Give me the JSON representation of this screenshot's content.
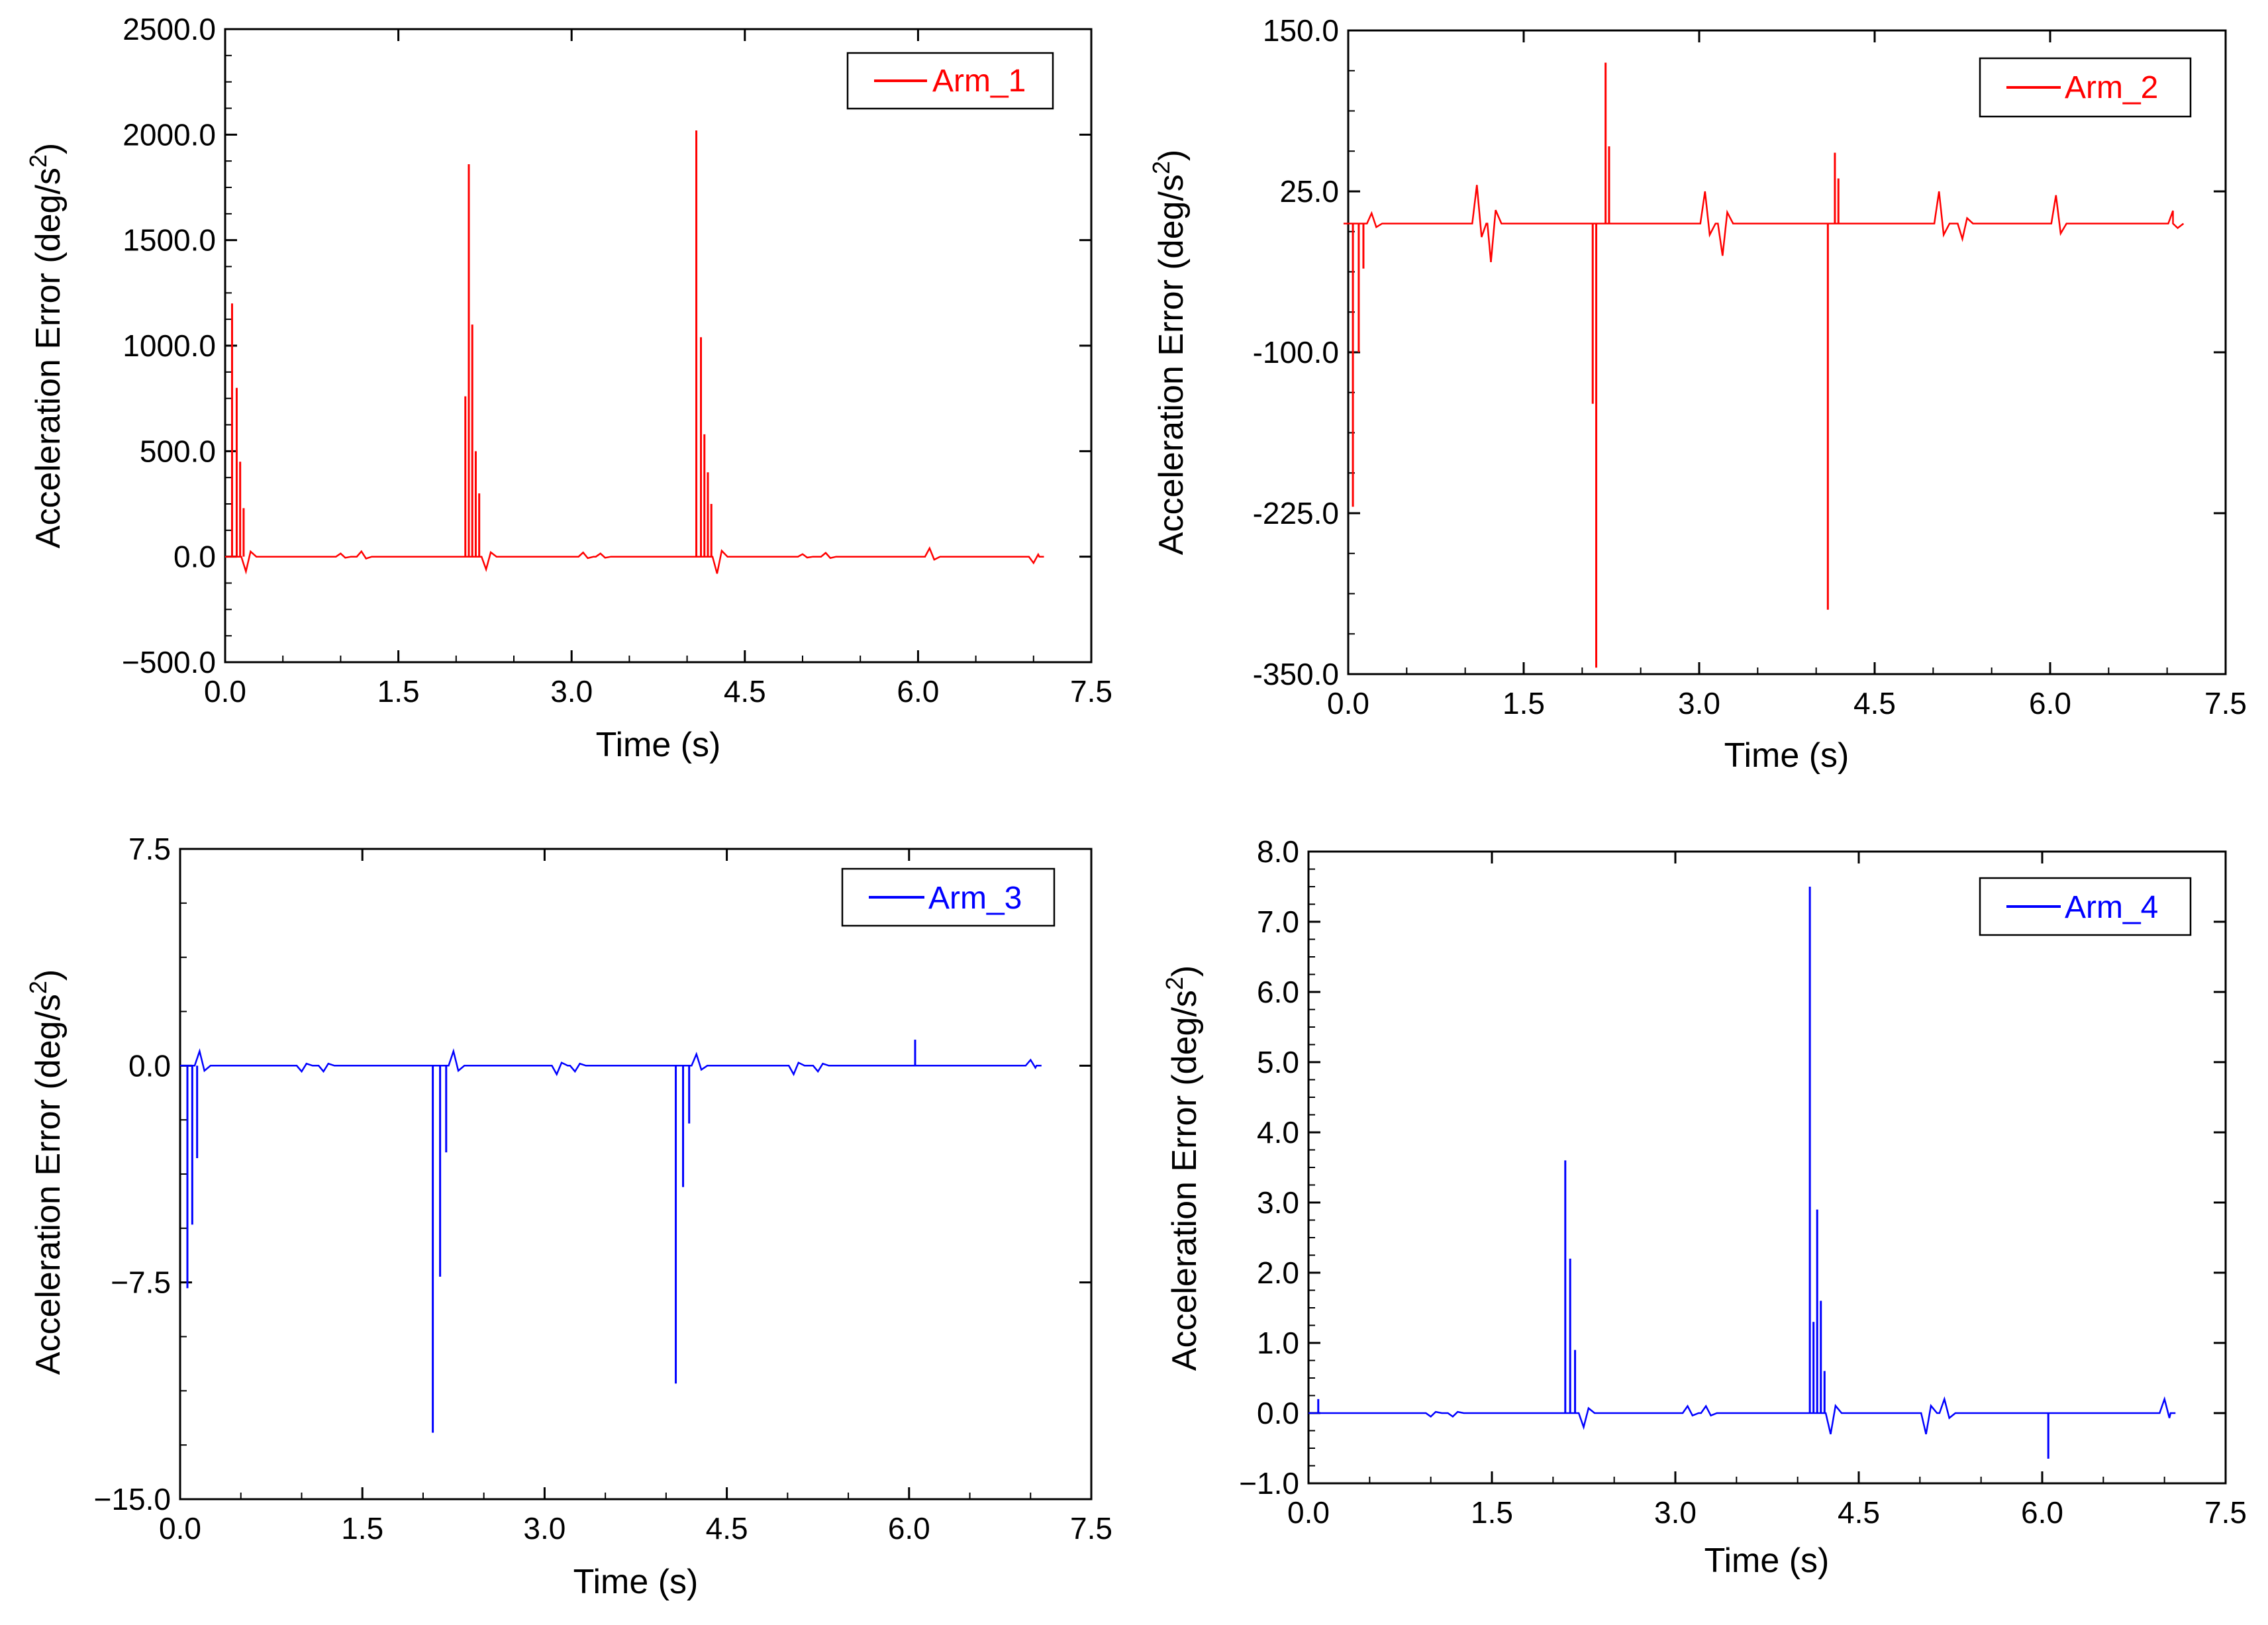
{
  "figure": {
    "x_unit_title": "Time (s)",
    "y_unit_title": "Acceleration Error (deg/s",
    "y_unit_sup": "2",
    "y_unit_close": ")"
  },
  "chart_data": [
    {
      "type": "line",
      "series": [
        {
          "name": "Arm_1",
          "color": "#ff0000"
        }
      ],
      "xlabel": "Time (s)",
      "ylabel": "Acceleration Error (deg/s2)",
      "xlim": [
        0,
        7.5
      ],
      "ylim": [
        -500,
        2500
      ],
      "xticks": [
        "0.0",
        "1.5",
        "3.0",
        "4.5",
        "6.0",
        "7.5"
      ],
      "yticks": [
        "−500.0",
        "0.0",
        "500.0",
        "1000.0",
        "1500.0",
        "2000.0",
        "2500.0"
      ],
      "ytick_values": [
        -500,
        0,
        500,
        1000,
        1500,
        2000,
        2500
      ],
      "baseline": 0,
      "spikes": [
        [
          0.06,
          1200
        ],
        [
          0.1,
          800
        ],
        [
          0.13,
          450
        ],
        [
          0.16,
          230
        ],
        [
          2.08,
          760
        ],
        [
          2.11,
          1860
        ],
        [
          2.14,
          1100
        ],
        [
          2.17,
          500
        ],
        [
          2.2,
          300
        ],
        [
          4.08,
          2020
        ],
        [
          4.12,
          1040
        ],
        [
          4.15,
          580
        ],
        [
          4.18,
          400
        ],
        [
          4.21,
          250
        ]
      ],
      "dips": [
        [
          0.18,
          -70
        ],
        [
          2.26,
          -60
        ],
        [
          4.26,
          -80
        ]
      ],
      "wiggles": [
        [
          1.0,
          15
        ],
        [
          1.18,
          25
        ],
        [
          3.1,
          20
        ],
        [
          3.25,
          15
        ],
        [
          5.0,
          12
        ],
        [
          5.2,
          18
        ],
        [
          6.1,
          40
        ],
        [
          7.0,
          -30
        ]
      ]
    },
    {
      "type": "line",
      "series": [
        {
          "name": "Arm_2",
          "color": "#ff0000"
        }
      ],
      "xlabel": "Time (s)",
      "ylabel": "Acceleration Error (deg/s2)",
      "xlim": [
        0,
        7.5
      ],
      "ylim": [
        -350,
        150
      ],
      "xticks": [
        "0.0",
        "1.5",
        "3.0",
        "4.5",
        "6.0",
        "7.5"
      ],
      "yticks": [
        "-350.0",
        "-225.0",
        "-100.0",
        "25.0",
        "150.0"
      ],
      "ytick_values": [
        -350,
        -225,
        -100,
        25,
        150
      ],
      "baseline": 0,
      "spikes": [
        [
          0.04,
          -220
        ],
        [
          0.09,
          -100
        ],
        [
          0.13,
          -35
        ],
        [
          2.09,
          -140
        ],
        [
          2.12,
          -345
        ],
        [
          2.2,
          125
        ],
        [
          2.23,
          60
        ],
        [
          4.1,
          -300
        ],
        [
          4.16,
          55
        ],
        [
          4.19,
          35
        ]
      ],
      "dips": [
        [
          0.0,
          0
        ],
        [
          0.2,
          8
        ]
      ],
      "wiggles": [
        [
          1.1,
          30
        ],
        [
          1.22,
          -30
        ],
        [
          3.05,
          25
        ],
        [
          3.2,
          -25
        ],
        [
          5.05,
          25
        ],
        [
          5.25,
          -12
        ],
        [
          6.05,
          22
        ],
        [
          7.05,
          10
        ]
      ]
    },
    {
      "type": "line",
      "series": [
        {
          "name": "Arm_3",
          "color": "#0000ff"
        }
      ],
      "xlabel": "Time (s)",
      "ylabel": "Acceleration Error (deg/s2)",
      "xlim": [
        0,
        7.5
      ],
      "ylim": [
        -15,
        7.5
      ],
      "xticks": [
        "0.0",
        "1.5",
        "3.0",
        "4.5",
        "6.0",
        "7.5"
      ],
      "yticks": [
        "−15.0",
        "−7.5",
        "0.0",
        "7.5"
      ],
      "ytick_values": [
        -15,
        -7.5,
        0,
        7.5
      ],
      "baseline": 0,
      "spikes": [
        [
          0.06,
          -7.7
        ],
        [
          0.1,
          -5.5
        ],
        [
          0.14,
          -3.2
        ],
        [
          2.08,
          -12.7
        ],
        [
          2.14,
          -7.3
        ],
        [
          2.19,
          -3.0
        ],
        [
          4.08,
          -11.0
        ],
        [
          4.14,
          -4.2
        ],
        [
          4.19,
          -2.0
        ],
        [
          6.05,
          0.9
        ]
      ],
      "dips": [
        [
          0.16,
          0.5
        ],
        [
          2.25,
          0.5
        ],
        [
          4.25,
          0.4
        ]
      ],
      "wiggles": [
        [
          1.0,
          -0.2
        ],
        [
          1.18,
          -0.2
        ],
        [
          3.1,
          -0.3
        ],
        [
          3.25,
          -0.2
        ],
        [
          5.05,
          -0.3
        ],
        [
          5.25,
          -0.2
        ],
        [
          7.0,
          0.2
        ]
      ]
    },
    {
      "type": "line",
      "series": [
        {
          "name": "Arm_4",
          "color": "#0000ff"
        }
      ],
      "xlabel": "Time (s)",
      "ylabel": "Acceleration Error (deg/s2)",
      "xlim": [
        0,
        7.5
      ],
      "ylim": [
        -1.0,
        8.0
      ],
      "xticks": [
        "0.0",
        "1.5",
        "3.0",
        "4.5",
        "6.0",
        "7.5"
      ],
      "yticks": [
        "−1.0",
        "0.0",
        "1.0",
        "2.0",
        "3.0",
        "4.0",
        "5.0",
        "6.0",
        "7.0",
        "8.0"
      ],
      "ytick_values": [
        -1,
        0,
        1,
        2,
        3,
        4,
        5,
        6,
        7,
        8
      ],
      "baseline": 0,
      "spikes": [
        [
          0.08,
          0.2
        ],
        [
          2.1,
          3.6
        ],
        [
          2.14,
          2.2
        ],
        [
          2.18,
          0.9
        ],
        [
          4.1,
          7.5
        ],
        [
          4.13,
          1.3
        ],
        [
          4.16,
          2.9
        ],
        [
          4.19,
          1.6
        ],
        [
          4.22,
          0.6
        ],
        [
          6.05,
          -0.65
        ]
      ],
      "dips": [
        [
          2.25,
          -0.2
        ],
        [
          4.27,
          -0.3
        ]
      ],
      "wiggles": [
        [
          1.0,
          -0.05
        ],
        [
          1.18,
          -0.05
        ],
        [
          3.1,
          0.1
        ],
        [
          3.25,
          0.1
        ],
        [
          5.05,
          -0.3
        ],
        [
          5.2,
          0.2
        ],
        [
          7.0,
          0.2
        ]
      ]
    }
  ]
}
